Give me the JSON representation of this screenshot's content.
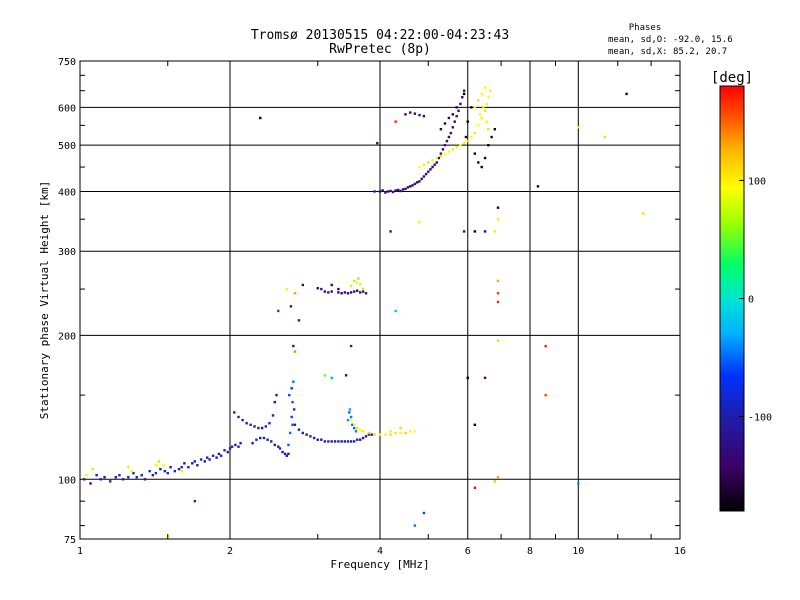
{
  "header": {
    "title_line1": "Tromsø 20130515 04:22:00-04:23:43",
    "title_line2": "RwPretec (8p)",
    "stats_title": "Phases",
    "stats_o": "mean, sd,O: -92.0, 15.6",
    "stats_x": "mean, sd,X:  85.2, 20.7"
  },
  "colorbar": {
    "unit_label": "[deg]",
    "range": [
      -180,
      180
    ],
    "ticks": [
      {
        "value": 100,
        "label": "100"
      },
      {
        "value": 0,
        "label": "0"
      },
      {
        "value": -100,
        "label": "-100"
      }
    ]
  },
  "chart_data": {
    "type": "scatter",
    "title": "Tromsø 20130515 04:22:00-04:23:43",
    "subtitle": "RwPretec (8p)",
    "xlabel": "Frequency [MHz]",
    "ylabel": "Stationary phase Virtual Height [km]",
    "x_scale": "log",
    "y_scale": "log",
    "xlim": [
      1,
      16
    ],
    "ylim": [
      75,
      750
    ],
    "grid": true,
    "x_ticks": [
      {
        "value": 1,
        "label": "1"
      },
      {
        "value": 2,
        "label": "2"
      },
      {
        "value": 4,
        "label": "4"
      },
      {
        "value": 6,
        "label": "6"
      },
      {
        "value": 8,
        "label": "8"
      },
      {
        "value": 10,
        "label": "10"
      },
      {
        "value": 16,
        "label": "16"
      }
    ],
    "y_ticks": [
      {
        "value": 75,
        "label": "75"
      },
      {
        "value": 100,
        "label": "100"
      },
      {
        "value": 200,
        "label": "200"
      },
      {
        "value": 300,
        "label": "300"
      },
      {
        "value": 400,
        "label": "400"
      },
      {
        "value": 500,
        "label": "500"
      },
      {
        "value": 600,
        "label": "600"
      },
      {
        "value": 750,
        "label": "750"
      }
    ],
    "points": [
      [
        1.02,
        100,
        -95
      ],
      [
        1.05,
        98,
        -110
      ],
      [
        1.08,
        102,
        -90
      ],
      [
        1.1,
        100,
        -100
      ],
      [
        1.12,
        101,
        -120
      ],
      [
        1.15,
        99,
        -85
      ],
      [
        1.18,
        101,
        -100
      ],
      [
        1.2,
        102,
        -95
      ],
      [
        1.22,
        100,
        -110
      ],
      [
        1.25,
        101,
        -92
      ],
      [
        1.28,
        103,
        -105
      ],
      [
        1.3,
        101,
        -80
      ],
      [
        1.33,
        102,
        -100
      ],
      [
        1.35,
        100,
        -115
      ],
      [
        1.38,
        104,
        -90
      ],
      [
        1.4,
        102,
        -100
      ],
      [
        1.42,
        103,
        -70
      ],
      [
        1.45,
        105,
        -95
      ],
      [
        1.48,
        104,
        -100
      ],
      [
        1.5,
        103,
        -88
      ],
      [
        1.52,
        106,
        -110
      ],
      [
        1.55,
        104,
        -92
      ],
      [
        1.58,
        105,
        -100
      ],
      [
        1.6,
        106,
        -85
      ],
      [
        1.62,
        108,
        -100
      ],
      [
        1.65,
        106,
        -95
      ],
      [
        1.68,
        108,
        -110
      ],
      [
        1.7,
        109,
        -90
      ],
      [
        1.72,
        107,
        -100
      ],
      [
        1.75,
        110,
        -80
      ],
      [
        1.78,
        109,
        -100
      ],
      [
        1.8,
        111,
        -95
      ],
      [
        1.82,
        110,
        -105
      ],
      [
        1.85,
        112,
        -92
      ],
      [
        1.88,
        111,
        -100
      ],
      [
        1.9,
        113,
        -110
      ],
      [
        1.92,
        112,
        -90
      ],
      [
        1.95,
        115,
        -100
      ],
      [
        1.98,
        114,
        -95
      ],
      [
        2.0,
        116,
        -105
      ],
      [
        2.02,
        117,
        -90
      ],
      [
        2.05,
        118,
        -100
      ],
      [
        2.08,
        117,
        -110
      ],
      [
        2.1,
        119,
        -95
      ],
      [
        1.25,
        106,
        85
      ],
      [
        1.27,
        104,
        100
      ],
      [
        1.42,
        107,
        90
      ],
      [
        1.44,
        109,
        110
      ],
      [
        1.47,
        107,
        95
      ],
      [
        1.6,
        104,
        80
      ],
      [
        1.03,
        102,
        90
      ],
      [
        1.06,
        105,
        75
      ],
      [
        2.04,
        138,
        -100
      ],
      [
        2.08,
        135,
        -90
      ],
      [
        2.12,
        133,
        -100
      ],
      [
        2.16,
        131,
        -110
      ],
      [
        2.2,
        130,
        -95
      ],
      [
        2.24,
        129,
        -100
      ],
      [
        2.28,
        128,
        -90
      ],
      [
        2.32,
        128,
        -105
      ],
      [
        2.36,
        129,
        -100
      ],
      [
        2.4,
        131,
        -95
      ],
      [
        2.44,
        136,
        -100
      ],
      [
        2.46,
        145,
        -110
      ],
      [
        2.48,
        150,
        -100
      ],
      [
        2.22,
        119,
        -100
      ],
      [
        2.26,
        121,
        -95
      ],
      [
        2.3,
        122,
        -110
      ],
      [
        2.34,
        122,
        -90
      ],
      [
        2.38,
        121,
        -100
      ],
      [
        2.42,
        120,
        -95
      ],
      [
        2.46,
        118,
        -105
      ],
      [
        2.5,
        117,
        -100
      ],
      [
        2.52,
        116,
        -90
      ],
      [
        2.55,
        114,
        -100
      ],
      [
        2.58,
        113,
        -95
      ],
      [
        2.6,
        112,
        -100
      ],
      [
        2.62,
        113,
        -110
      ],
      [
        2.62,
        118,
        -55
      ],
      [
        2.64,
        125,
        -50
      ],
      [
        2.66,
        135,
        -60
      ],
      [
        2.67,
        145,
        -55
      ],
      [
        2.68,
        160,
        -50
      ],
      [
        2.66,
        155,
        -65
      ],
      [
        2.63,
        150,
        -60
      ],
      [
        2.67,
        130,
        -55
      ],
      [
        2.69,
        140,
        -70
      ],
      [
        2.7,
        130,
        -100
      ],
      [
        2.75,
        127,
        -95
      ],
      [
        2.8,
        125,
        -100
      ],
      [
        2.85,
        124,
        -110
      ],
      [
        2.9,
        123,
        -100
      ],
      [
        2.95,
        122,
        -95
      ],
      [
        3.0,
        121,
        -100
      ],
      [
        3.05,
        121,
        -105
      ],
      [
        3.1,
        120,
        -100
      ],
      [
        3.15,
        120,
        -90
      ],
      [
        3.2,
        120,
        -100
      ],
      [
        3.25,
        120,
        -110
      ],
      [
        3.3,
        120,
        -95
      ],
      [
        3.35,
        120,
        -100
      ],
      [
        3.4,
        120,
        -100
      ],
      [
        3.45,
        120,
        -95
      ],
      [
        3.5,
        120,
        -110
      ],
      [
        3.55,
        120,
        -100
      ],
      [
        3.6,
        121,
        -95
      ],
      [
        3.65,
        121,
        -100
      ],
      [
        3.7,
        122,
        -105
      ],
      [
        3.75,
        123,
        -100
      ],
      [
        3.8,
        124,
        -95
      ],
      [
        3.85,
        124,
        -100
      ],
      [
        3.45,
        133,
        -40
      ],
      [
        3.47,
        138,
        -50
      ],
      [
        3.5,
        135,
        -45
      ],
      [
        3.52,
        130,
        -55
      ],
      [
        3.48,
        140,
        -35
      ],
      [
        3.55,
        128,
        -50
      ],
      [
        3.58,
        126,
        -45
      ],
      [
        3.5,
        133,
        95
      ],
      [
        3.55,
        130,
        100
      ],
      [
        3.6,
        128,
        110
      ],
      [
        3.65,
        127,
        95
      ],
      [
        3.7,
        126,
        100
      ],
      [
        3.8,
        125,
        120
      ],
      [
        3.9,
        124,
        110
      ],
      [
        4.0,
        124,
        95
      ],
      [
        4.1,
        124,
        100
      ],
      [
        4.2,
        124,
        110
      ],
      [
        4.3,
        125,
        105
      ],
      [
        4.4,
        125,
        100
      ],
      [
        4.5,
        125,
        115
      ],
      [
        4.6,
        126,
        100
      ],
      [
        4.7,
        126,
        95
      ],
      [
        4.4,
        128,
        110
      ],
      [
        4.2,
        126,
        100
      ],
      [
        2.8,
        255,
        -130
      ],
      [
        3.0,
        251,
        -140
      ],
      [
        3.05,
        250,
        -120
      ],
      [
        3.1,
        247,
        -130
      ],
      [
        3.15,
        246,
        -120
      ],
      [
        3.2,
        247,
        -135
      ],
      [
        3.3,
        246,
        -125
      ],
      [
        3.35,
        245,
        -130
      ],
      [
        3.4,
        246,
        -120
      ],
      [
        3.45,
        245,
        -140
      ],
      [
        3.5,
        246,
        -130
      ],
      [
        3.55,
        247,
        -125
      ],
      [
        3.6,
        248,
        -135
      ],
      [
        3.65,
        246,
        -120
      ],
      [
        3.7,
        247,
        -130
      ],
      [
        3.75,
        245,
        -125
      ],
      [
        3.5,
        254,
        80
      ],
      [
        3.55,
        260,
        70
      ],
      [
        3.6,
        258,
        90
      ],
      [
        3.62,
        263,
        60
      ],
      [
        3.65,
        256,
        85
      ],
      [
        3.7,
        250,
        75
      ],
      [
        4.0,
        400,
        -130
      ],
      [
        4.05,
        402,
        -140
      ],
      [
        4.1,
        398,
        -120
      ],
      [
        4.15,
        400,
        -135
      ],
      [
        4.2,
        401,
        -130
      ],
      [
        4.25,
        399,
        -125
      ],
      [
        4.3,
        402,
        -140
      ],
      [
        4.35,
        403,
        -130
      ],
      [
        4.4,
        401,
        -120
      ],
      [
        4.45,
        404,
        -135
      ],
      [
        4.5,
        405,
        -130
      ],
      [
        4.55,
        408,
        -125
      ],
      [
        4.6,
        410,
        -140
      ],
      [
        4.65,
        412,
        -130
      ],
      [
        4.7,
        415,
        -120
      ],
      [
        4.75,
        418,
        -135
      ],
      [
        4.8,
        420,
        -130
      ],
      [
        4.85,
        425,
        -125
      ],
      [
        4.9,
        430,
        -140
      ],
      [
        4.95,
        435,
        -130
      ],
      [
        5.0,
        440,
        -120
      ],
      [
        5.05,
        445,
        -135
      ],
      [
        5.1,
        450,
        -130
      ],
      [
        5.15,
        455,
        -125
      ],
      [
        5.2,
        460,
        -140
      ],
      [
        5.25,
        470,
        -130
      ],
      [
        5.3,
        480,
        -120
      ],
      [
        5.35,
        490,
        -135
      ],
      [
        5.4,
        500,
        -130
      ],
      [
        5.45,
        510,
        -125
      ],
      [
        5.5,
        520,
        -140
      ],
      [
        5.55,
        530,
        -130
      ],
      [
        5.6,
        545,
        -120
      ],
      [
        5.65,
        560,
        -135
      ],
      [
        5.7,
        575,
        -130
      ],
      [
        5.75,
        590,
        -125
      ],
      [
        5.8,
        610,
        -140
      ],
      [
        5.85,
        630,
        -130
      ],
      [
        5.9,
        650,
        -120
      ],
      [
        5.3,
        540,
        -150
      ],
      [
        5.4,
        555,
        -160
      ],
      [
        5.5,
        570,
        -145
      ],
      [
        5.6,
        580,
        -155
      ],
      [
        5.7,
        600,
        -150
      ],
      [
        5.2,
        470,
        100
      ],
      [
        5.3,
        475,
        110
      ],
      [
        5.4,
        480,
        95
      ],
      [
        5.5,
        485,
        100
      ],
      [
        5.6,
        490,
        105
      ],
      [
        5.7,
        495,
        100
      ],
      [
        5.8,
        500,
        95
      ],
      [
        5.9,
        505,
        100
      ],
      [
        6.0,
        510,
        110
      ],
      [
        6.1,
        520,
        100
      ],
      [
        6.2,
        530,
        105
      ],
      [
        6.3,
        550,
        95
      ],
      [
        6.4,
        570,
        100
      ],
      [
        6.5,
        590,
        110
      ],
      [
        6.55,
        610,
        100
      ],
      [
        6.6,
        630,
        95
      ],
      [
        6.65,
        650,
        100
      ],
      [
        6.2,
        600,
        100
      ],
      [
        6.3,
        620,
        110
      ],
      [
        6.4,
        640,
        95
      ],
      [
        6.5,
        660,
        100
      ],
      [
        6.35,
        580,
        90
      ],
      [
        6.45,
        600,
        105
      ],
      [
        6.55,
        560,
        100
      ],
      [
        6.6,
        540,
        110
      ],
      [
        5.0,
        460,
        110
      ],
      [
        5.1,
        465,
        100
      ],
      [
        4.9,
        455,
        105
      ],
      [
        4.8,
        450,
        95
      ],
      [
        5.9,
        640,
        -180
      ],
      [
        6.1,
        600,
        -170
      ],
      [
        6.0,
        560,
        -175
      ],
      [
        5.95,
        520,
        -165
      ],
      [
        6.2,
        480,
        -175
      ],
      [
        6.3,
        460,
        -170
      ],
      [
        6.4,
        450,
        -178
      ],
      [
        6.5,
        470,
        -172
      ],
      [
        6.6,
        500,
        -176
      ],
      [
        6.7,
        520,
        -168
      ],
      [
        6.8,
        540,
        -174
      ],
      [
        4.5,
        580,
        -140
      ],
      [
        4.6,
        585,
        -130
      ],
      [
        4.7,
        582,
        -135
      ],
      [
        4.8,
        578,
        -125
      ],
      [
        4.9,
        575,
        -140
      ],
      [
        4.3,
        560,
        170
      ],
      [
        3.95,
        505,
        -120
      ],
      [
        3.9,
        400,
        -80
      ],
      [
        4.2,
        330,
        -120
      ],
      [
        4.8,
        345,
        100
      ],
      [
        5.9,
        330,
        -120
      ],
      [
        6.2,
        330,
        -180
      ],
      [
        6.5,
        330,
        -140
      ],
      [
        6.8,
        330,
        80
      ],
      [
        6.9,
        370,
        -160
      ],
      [
        6.9,
        350,
        100
      ],
      [
        6.9,
        260,
        130
      ],
      [
        6.9,
        245,
        160
      ],
      [
        6.9,
        235,
        170
      ],
      [
        6.9,
        195,
        110
      ],
      [
        6.0,
        163,
        -180
      ],
      [
        6.5,
        163,
        -140
      ],
      [
        6.2,
        130,
        -180
      ],
      [
        6.2,
        96,
        175
      ],
      [
        6.8,
        99,
        120
      ],
      [
        6.9,
        101,
        130
      ],
      [
        8.3,
        410,
        -180
      ],
      [
        8.6,
        150,
        160
      ],
      [
        8.6,
        190,
        170
      ],
      [
        10.0,
        545,
        100
      ],
      [
        11.3,
        520,
        110
      ],
      [
        12.5,
        640,
        -170
      ],
      [
        13.5,
        360,
        110
      ],
      [
        10.0,
        98,
        -40
      ],
      [
        4.7,
        80,
        -50
      ],
      [
        4.9,
        85,
        -60
      ],
      [
        2.3,
        570,
        -180
      ],
      [
        1.7,
        90,
        -90
      ],
      [
        2.5,
        225,
        -60
      ],
      [
        2.6,
        250,
        100
      ],
      [
        2.7,
        245,
        130
      ],
      [
        2.65,
        230,
        -130
      ],
      [
        2.68,
        190,
        -120
      ],
      [
        2.7,
        185,
        140
      ],
      [
        2.75,
        215,
        -120
      ],
      [
        3.1,
        165,
        50
      ],
      [
        3.2,
        163,
        -30
      ],
      [
        3.5,
        190,
        -100
      ],
      [
        3.42,
        165,
        -130
      ],
      [
        3.3,
        250,
        -140
      ],
      [
        3.2,
        255,
        -150
      ],
      [
        4.3,
        225,
        -20
      ],
      [
        1.5,
        76,
        100
      ]
    ]
  }
}
